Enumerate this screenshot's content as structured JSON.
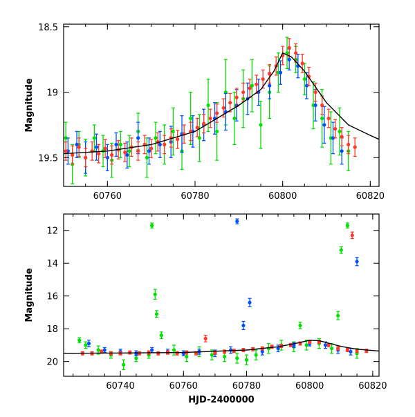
{
  "chart_data": [
    {
      "type": "scatter",
      "panel": "top",
      "title": "",
      "xlabel": "",
      "ylabel": "Magnitude",
      "xlim": [
        60750,
        60822
      ],
      "ylim": [
        19.72,
        18.48
      ],
      "y_inverted": true,
      "x_ticks": [
        60760,
        60780,
        60800,
        60820
      ],
      "y_ticks": [
        18.5,
        19,
        19.5
      ],
      "x_tick_labels": [
        "60760",
        "60780",
        "60800",
        "60820"
      ],
      "y_tick_labels": [
        "18.5",
        "19",
        "19.5"
      ],
      "grid": false,
      "legend": "none",
      "series": [
        {
          "color": "#00e000",
          "x": [
            60750.5,
            60752,
            60753.5,
            60755,
            60757,
            60759,
            60761,
            60763,
            60765,
            60767,
            60769,
            60771,
            60773,
            60775,
            60777,
            60779,
            60781,
            60783,
            60785,
            60787,
            60789,
            60791,
            60793,
            60795,
            60797,
            60799,
            60801,
            60803,
            60805,
            60807,
            60809,
            60811,
            60813,
            60815
          ],
          "y": [
            19.35,
            19.55,
            19.4,
            19.5,
            19.35,
            19.45,
            19.52,
            19.4,
            19.45,
            19.3,
            19.5,
            19.35,
            19.4,
            19.3,
            19.45,
            19.2,
            19.35,
            19.1,
            19.3,
            19.0,
            19.2,
            19.05,
            18.95,
            19.25,
            19.0,
            18.85,
            18.7,
            18.75,
            18.9,
            19.1,
            19.2,
            19.35,
            19.3,
            19.45
          ],
          "err": [
            0.12,
            0.15,
            0.1,
            0.14,
            0.1,
            0.12,
            0.13,
            0.1,
            0.12,
            0.14,
            0.15,
            0.12,
            0.15,
            0.18,
            0.14,
            0.2,
            0.18,
            0.2,
            0.22,
            0.25,
            0.2,
            0.22,
            0.2,
            0.18,
            0.2,
            0.15,
            0.12,
            0.1,
            0.12,
            0.18,
            0.22,
            0.2,
            0.18,
            0.15
          ]
        },
        {
          "color": "#0050ff",
          "x": [
            60751,
            60753,
            60755,
            60757.5,
            60760,
            60762,
            60764.5,
            60767,
            60769.5,
            60772,
            60774.5,
            60777,
            60779.5,
            60782,
            60784.5,
            60787,
            60789.5,
            60792,
            60794.5,
            60797,
            60799.5,
            60801.5,
            60803.5,
            60805.5,
            60807.5,
            60809.5,
            60811.5,
            60813.5
          ],
          "y": [
            19.45,
            19.4,
            19.5,
            19.42,
            19.5,
            19.4,
            19.48,
            19.35,
            19.45,
            19.4,
            19.38,
            19.32,
            19.3,
            19.25,
            19.2,
            19.15,
            19.1,
            19.05,
            19.0,
            18.95,
            18.85,
            18.75,
            18.8,
            18.95,
            19.1,
            19.25,
            19.35,
            19.45
          ],
          "err": [
            0.1,
            0.1,
            0.12,
            0.1,
            0.1,
            0.09,
            0.1,
            0.12,
            0.1,
            0.1,
            0.12,
            0.14,
            0.12,
            0.12,
            0.12,
            0.14,
            0.12,
            0.12,
            0.1,
            0.1,
            0.09,
            0.08,
            0.09,
            0.1,
            0.12,
            0.14,
            0.12,
            0.1
          ]
        },
        {
          "color": "#ff3a2a",
          "x": [
            60750.5,
            60752,
            60753.5,
            60755,
            60756.5,
            60758,
            60759.5,
            60761,
            60762.5,
            60764,
            60765.5,
            60767,
            60768.5,
            60770,
            60771.5,
            60773,
            60774.5,
            60776,
            60777.5,
            60779,
            60780.5,
            60782,
            60783.5,
            60785,
            60786.5,
            60788,
            60789.5,
            60791,
            60792.5,
            60794,
            60795.5,
            60797,
            60798.5,
            60800,
            60801.5,
            60803,
            60804.5,
            60806,
            60807.5,
            60809,
            60810.5,
            60812,
            60813.5,
            60815,
            60816.5
          ],
          "y": [
            19.45,
            19.48,
            19.42,
            19.5,
            19.45,
            19.47,
            19.43,
            19.48,
            19.44,
            19.46,
            19.42,
            19.45,
            19.4,
            19.43,
            19.38,
            19.4,
            19.35,
            19.36,
            19.32,
            19.3,
            19.27,
            19.24,
            19.2,
            19.16,
            19.12,
            19.08,
            19.04,
            19.0,
            18.97,
            18.94,
            18.9,
            18.86,
            18.8,
            18.72,
            18.66,
            18.7,
            18.78,
            18.88,
            19.0,
            19.1,
            19.2,
            19.28,
            19.34,
            19.4,
            19.42
          ],
          "err": [
            0.07,
            0.07,
            0.07,
            0.07,
            0.07,
            0.07,
            0.07,
            0.07,
            0.07,
            0.07,
            0.07,
            0.07,
            0.07,
            0.07,
            0.07,
            0.07,
            0.07,
            0.07,
            0.07,
            0.07,
            0.07,
            0.07,
            0.07,
            0.07,
            0.07,
            0.07,
            0.07,
            0.07,
            0.07,
            0.07,
            0.07,
            0.07,
            0.07,
            0.07,
            0.07,
            0.07,
            0.07,
            0.07,
            0.07,
            0.07,
            0.07,
            0.07,
            0.07,
            0.07,
            0.07
          ]
        }
      ],
      "model": {
        "color": "#000000",
        "x": [
          60750,
          60760,
          60770,
          60780,
          60785,
          60790,
          60795,
          60798,
          60800,
          60802,
          60805,
          60810,
          60815,
          60820,
          60822
        ],
        "y": [
          19.47,
          19.45,
          19.4,
          19.3,
          19.2,
          19.1,
          18.98,
          18.84,
          18.7,
          18.73,
          18.84,
          19.08,
          19.25,
          19.33,
          19.36
        ]
      }
    },
    {
      "type": "scatter",
      "panel": "bottom",
      "title": "",
      "xlabel": "HJD-2400000",
      "ylabel": "Magnitude",
      "xlim": [
        60722,
        60822
      ],
      "ylim": [
        20.9,
        11.0
      ],
      "y_inverted": true,
      "x_ticks": [
        60740,
        60760,
        60780,
        60800,
        60820
      ],
      "y_ticks": [
        12,
        14,
        16,
        18,
        20
      ],
      "x_tick_labels": [
        "60740",
        "60760",
        "60780",
        "60800",
        "60820"
      ],
      "y_tick_labels": [
        "12",
        "14",
        "16",
        "18",
        "20"
      ],
      "grid": false,
      "legend": "none",
      "series": [
        {
          "color": "#00e000",
          "x": [
            60727,
            60729,
            60733,
            60737,
            60741,
            60745,
            60749,
            60750,
            60751,
            60751.5,
            60753,
            60757,
            60761,
            60765,
            60769,
            60773,
            60777,
            60780,
            60783,
            60787,
            60791,
            60795,
            60797,
            60799,
            60803,
            60807,
            60809,
            60810,
            60812,
            60815
          ],
          "y": [
            18.7,
            19.0,
            19.3,
            19.6,
            20.2,
            19.8,
            19.6,
            11.7,
            15.9,
            17.1,
            18.4,
            19.3,
            19.7,
            19.4,
            19.6,
            19.7,
            19.8,
            19.9,
            19.6,
            19.2,
            19.0,
            19.1,
            17.8,
            19.0,
            18.9,
            19.2,
            17.2,
            13.2,
            11.7,
            19.5
          ],
          "err": [
            0.15,
            0.2,
            0.25,
            0.2,
            0.3,
            0.2,
            0.2,
            0.15,
            0.3,
            0.2,
            0.2,
            0.3,
            0.3,
            0.3,
            0.3,
            0.3,
            0.3,
            0.3,
            0.3,
            0.3,
            0.3,
            0.3,
            0.2,
            0.3,
            0.3,
            0.3,
            0.25,
            0.2,
            0.15,
            0.3
          ]
        },
        {
          "color": "#0050ff",
          "x": [
            60730,
            60735,
            60740,
            60745,
            60750,
            60755,
            60760,
            60765,
            60770,
            60775,
            60777,
            60779,
            60781,
            60785,
            60790,
            60795,
            60800,
            60805,
            60809,
            60813,
            60815
          ],
          "y": [
            18.9,
            19.3,
            19.4,
            19.5,
            19.3,
            19.4,
            19.5,
            19.4,
            19.5,
            19.3,
            11.45,
            17.8,
            16.4,
            19.4,
            19.2,
            19.0,
            18.9,
            19.0,
            19.3,
            19.4,
            13.9
          ],
          "err": [
            0.2,
            0.15,
            0.15,
            0.15,
            0.15,
            0.15,
            0.15,
            0.15,
            0.2,
            0.2,
            0.15,
            0.25,
            0.25,
            0.2,
            0.2,
            0.15,
            0.15,
            0.2,
            0.2,
            0.2,
            0.25
          ]
        },
        {
          "color": "#ff3a2a",
          "x": [
            60728,
            60731,
            60734,
            60737,
            60740,
            60743,
            60746,
            60749,
            60752,
            60755,
            60758,
            60761,
            60764,
            60767,
            60770,
            60773,
            60776,
            60779,
            60782,
            60785,
            60788,
            60791,
            60794,
            60797,
            60800,
            60803,
            60806,
            60809,
            60812,
            60813.5,
            60815,
            60818
          ],
          "y": [
            19.5,
            19.5,
            19.4,
            19.5,
            19.5,
            19.45,
            19.5,
            19.45,
            19.5,
            19.45,
            19.5,
            19.45,
            19.5,
            18.6,
            19.45,
            19.4,
            19.35,
            19.3,
            19.25,
            19.2,
            19.1,
            19.05,
            19.0,
            18.9,
            18.8,
            18.8,
            19.0,
            19.2,
            19.3,
            12.3,
            19.35,
            19.35
          ],
          "err": [
            0.1,
            0.1,
            0.1,
            0.1,
            0.1,
            0.1,
            0.1,
            0.1,
            0.1,
            0.1,
            0.1,
            0.1,
            0.1,
            0.2,
            0.1,
            0.1,
            0.1,
            0.1,
            0.1,
            0.1,
            0.1,
            0.1,
            0.1,
            0.1,
            0.1,
            0.1,
            0.1,
            0.1,
            0.1,
            0.2,
            0.1,
            0.1
          ]
        }
      ],
      "model": {
        "color": "#000000",
        "x": [
          60722,
          60740,
          60760,
          60780,
          60790,
          60797,
          60800,
          60803,
          60810,
          60815,
          60822
        ],
        "y": [
          19.5,
          19.48,
          19.45,
          19.3,
          19.1,
          18.84,
          18.7,
          18.73,
          19.08,
          19.25,
          19.36
        ]
      }
    }
  ]
}
